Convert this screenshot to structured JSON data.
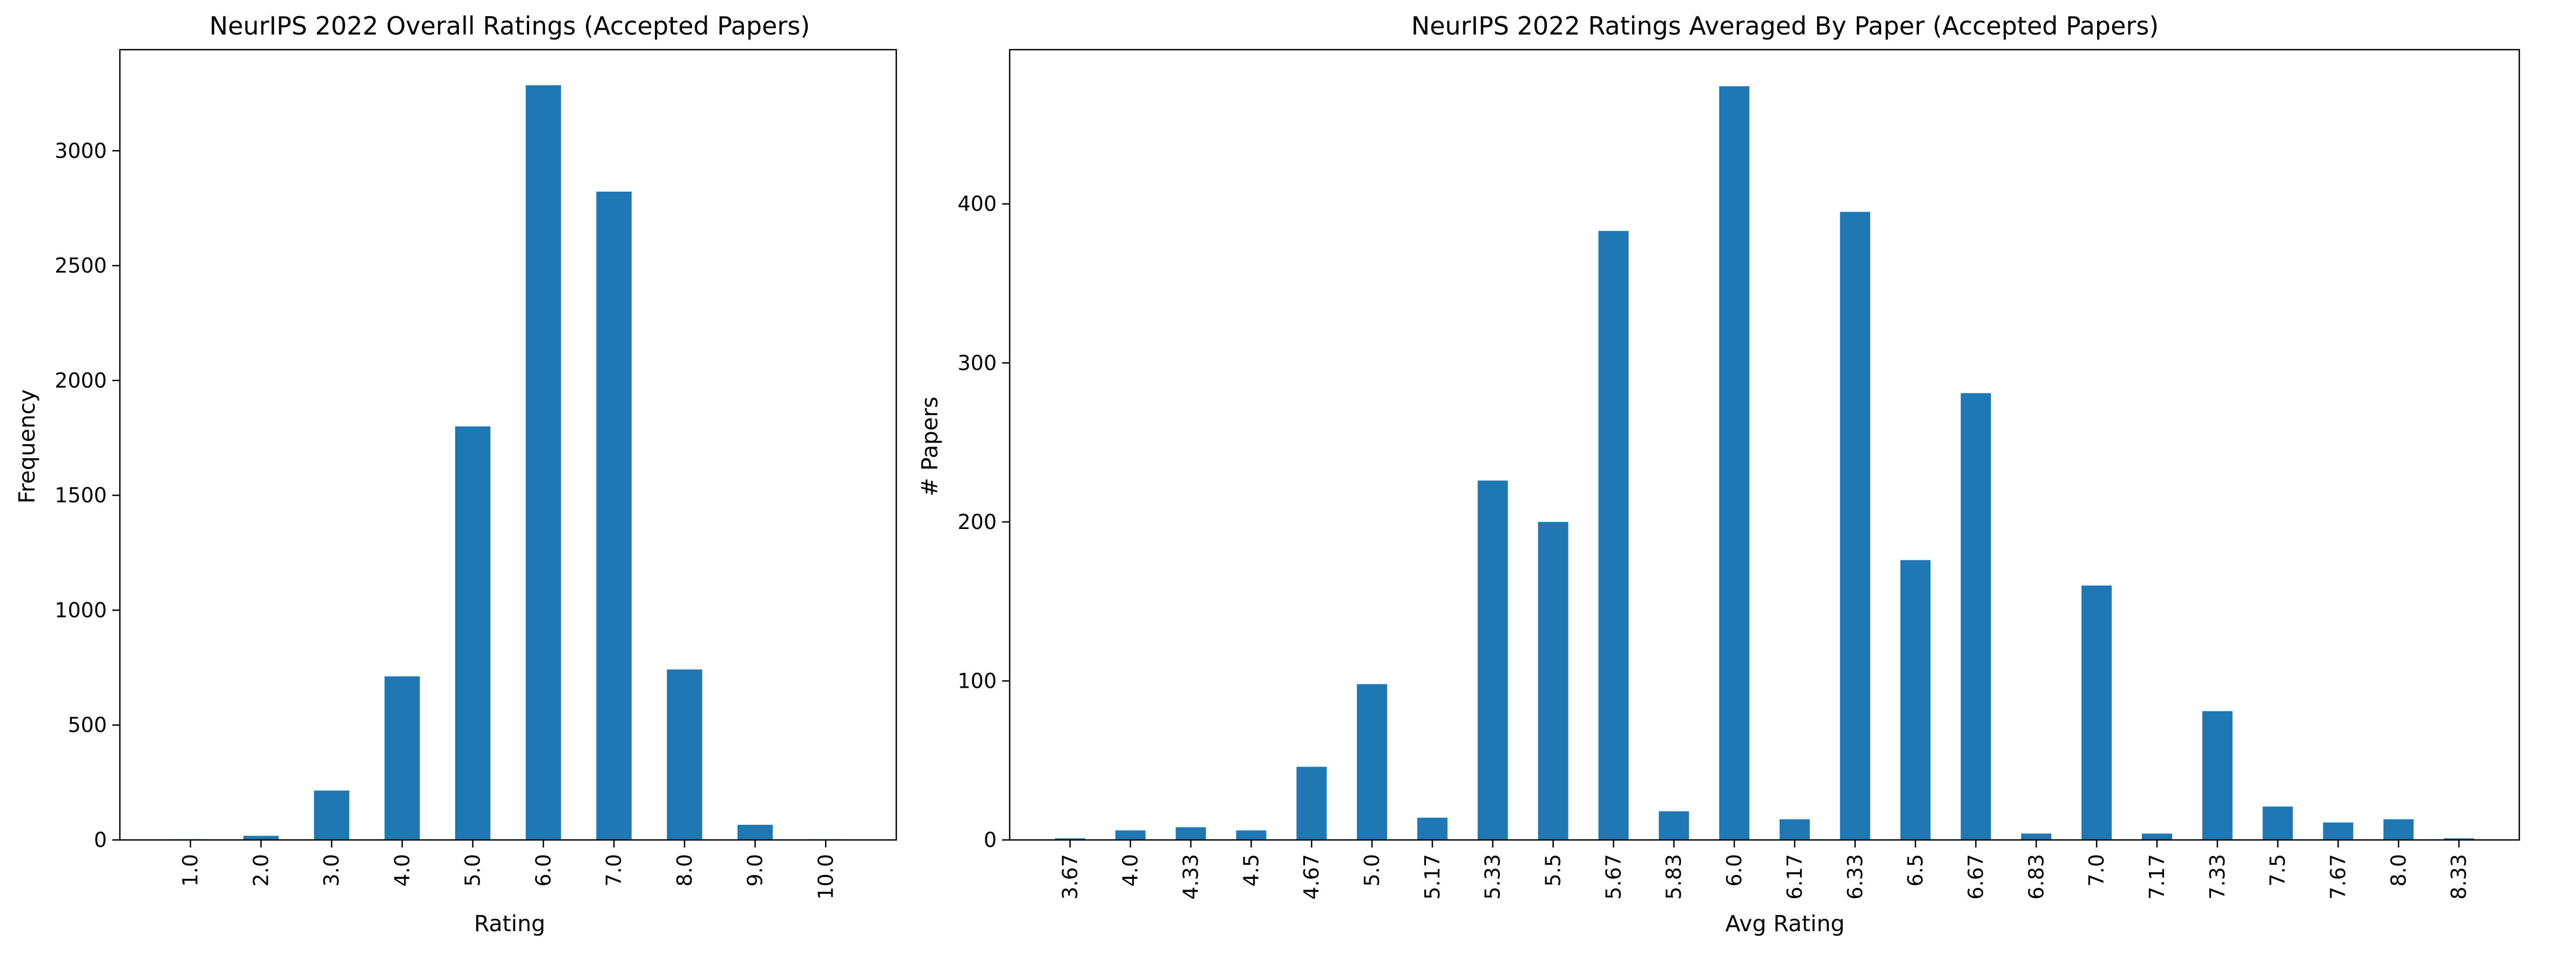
{
  "chart_data": [
    {
      "type": "bar",
      "title": "NeurIPS 2022 Overall Ratings (Accepted Papers)",
      "xlabel": "Rating",
      "ylabel": "Frequency",
      "categories": [
        "1.0",
        "2.0",
        "3.0",
        "4.0",
        "5.0",
        "6.0",
        "7.0",
        "8.0",
        "9.0",
        "10.0"
      ],
      "values": [
        3,
        18,
        215,
        712,
        1800,
        3285,
        2822,
        742,
        66,
        3
      ],
      "ylim": [
        0,
        3440
      ],
      "yticks": [
        0,
        500,
        1000,
        1500,
        2000,
        2500,
        3000
      ],
      "bar_color": "#1f77b4",
      "grid": false,
      "legend": "none"
    },
    {
      "type": "bar",
      "title": "NeurIPS 2022 Ratings Averaged By Paper (Accepted Papers)",
      "xlabel": "Avg Rating",
      "ylabel": "# Papers",
      "categories": [
        "3.67",
        "4.0",
        "4.33",
        "4.5",
        "4.67",
        "5.0",
        "5.17",
        "5.33",
        "5.5",
        "5.67",
        "5.83",
        "6.0",
        "6.17",
        "6.33",
        "6.5",
        "6.67",
        "6.83",
        "7.0",
        "7.17",
        "7.33",
        "7.5",
        "7.67",
        "8.0",
        "8.33"
      ],
      "values": [
        1,
        6,
        8,
        6,
        46,
        98,
        14,
        226,
        200,
        383,
        18,
        474,
        13,
        395,
        176,
        281,
        4,
        160,
        4,
        81,
        21,
        11,
        13,
        1
      ],
      "ylim": [
        0,
        497
      ],
      "yticks": [
        0,
        100,
        200,
        300,
        400
      ],
      "bar_color": "#1f77b4",
      "grid": false,
      "legend": "none"
    }
  ]
}
